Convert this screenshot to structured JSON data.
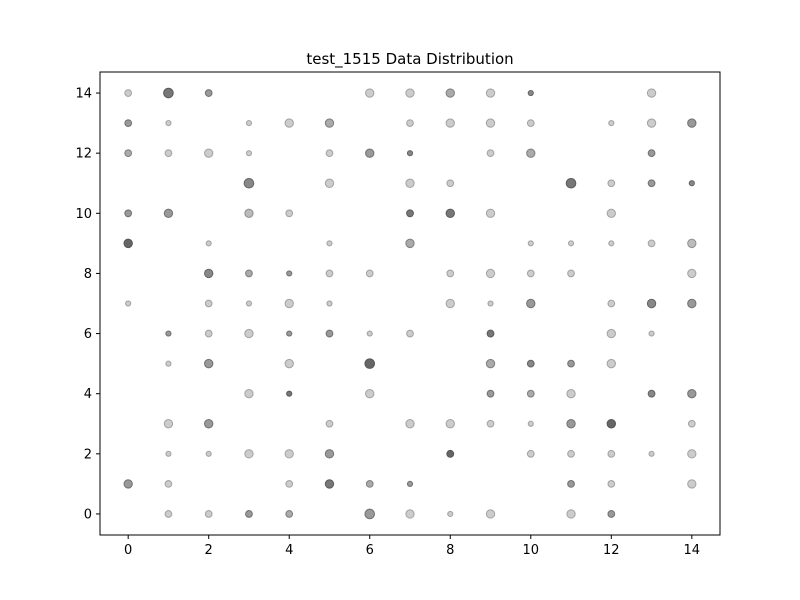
{
  "chart_data": {
    "type": "scatter",
    "title": "test_1515 Data Distribution",
    "xlabel": "",
    "ylabel": "",
    "xlim": [
      -0.7,
      14.7
    ],
    "ylim": [
      -0.7,
      14.7
    ],
    "xticks": [
      0,
      2,
      4,
      6,
      8,
      10,
      12,
      14
    ],
    "yticks": [
      0,
      2,
      4,
      6,
      8,
      10,
      12,
      14
    ],
    "grid": false,
    "marker_color": "#555555",
    "points": [
      {
        "x": 0,
        "y": 14,
        "size": "small",
        "alpha": 0.3
      },
      {
        "x": 1,
        "y": 14,
        "size": "large",
        "alpha": 0.8
      },
      {
        "x": 2,
        "y": 14,
        "size": "small",
        "alpha": 0.6
      },
      {
        "x": 6,
        "y": 14,
        "size": "medium",
        "alpha": 0.3
      },
      {
        "x": 7,
        "y": 14,
        "size": "medium",
        "alpha": 0.3
      },
      {
        "x": 8,
        "y": 14,
        "size": "medium",
        "alpha": 0.5
      },
      {
        "x": 9,
        "y": 14,
        "size": "medium",
        "alpha": 0.3
      },
      {
        "x": 10,
        "y": 14,
        "size": "tiny",
        "alpha": 0.7
      },
      {
        "x": 13,
        "y": 14,
        "size": "medium",
        "alpha": 0.3
      },
      {
        "x": 0,
        "y": 13,
        "size": "small",
        "alpha": 0.6
      },
      {
        "x": 1,
        "y": 13,
        "size": "tiny",
        "alpha": 0.3
      },
      {
        "x": 3,
        "y": 13,
        "size": "tiny",
        "alpha": 0.3
      },
      {
        "x": 4,
        "y": 13,
        "size": "medium",
        "alpha": 0.3
      },
      {
        "x": 5,
        "y": 13,
        "size": "medium",
        "alpha": 0.5
      },
      {
        "x": 7,
        "y": 13,
        "size": "small",
        "alpha": 0.3
      },
      {
        "x": 8,
        "y": 13,
        "size": "medium",
        "alpha": 0.3
      },
      {
        "x": 9,
        "y": 13,
        "size": "medium",
        "alpha": 0.3
      },
      {
        "x": 10,
        "y": 13,
        "size": "small",
        "alpha": 0.3
      },
      {
        "x": 12,
        "y": 13,
        "size": "tiny",
        "alpha": 0.3
      },
      {
        "x": 13,
        "y": 13,
        "size": "medium",
        "alpha": 0.3
      },
      {
        "x": 14,
        "y": 13,
        "size": "medium",
        "alpha": 0.6
      },
      {
        "x": 0,
        "y": 12,
        "size": "small",
        "alpha": 0.5
      },
      {
        "x": 1,
        "y": 12,
        "size": "small",
        "alpha": 0.3
      },
      {
        "x": 2,
        "y": 12,
        "size": "medium",
        "alpha": 0.3
      },
      {
        "x": 3,
        "y": 12,
        "size": "tiny",
        "alpha": 0.3
      },
      {
        "x": 5,
        "y": 12,
        "size": "small",
        "alpha": 0.3
      },
      {
        "x": 6,
        "y": 12,
        "size": "medium",
        "alpha": 0.6
      },
      {
        "x": 7,
        "y": 12,
        "size": "tiny",
        "alpha": 0.7
      },
      {
        "x": 9,
        "y": 12,
        "size": "small",
        "alpha": 0.3
      },
      {
        "x": 10,
        "y": 12,
        "size": "medium",
        "alpha": 0.5
      },
      {
        "x": 13,
        "y": 12,
        "size": "small",
        "alpha": 0.6
      },
      {
        "x": 3,
        "y": 11,
        "size": "large",
        "alpha": 0.7
      },
      {
        "x": 5,
        "y": 11,
        "size": "medium",
        "alpha": 0.3
      },
      {
        "x": 7,
        "y": 11,
        "size": "medium",
        "alpha": 0.3
      },
      {
        "x": 8,
        "y": 11,
        "size": "small",
        "alpha": 0.3
      },
      {
        "x": 11,
        "y": 11,
        "size": "large",
        "alpha": 0.8
      },
      {
        "x": 12,
        "y": 11,
        "size": "small",
        "alpha": 0.3
      },
      {
        "x": 13,
        "y": 11,
        "size": "small",
        "alpha": 0.6
      },
      {
        "x": 14,
        "y": 11,
        "size": "tiny",
        "alpha": 0.7
      },
      {
        "x": 0,
        "y": 10,
        "size": "small",
        "alpha": 0.6
      },
      {
        "x": 1,
        "y": 10,
        "size": "medium",
        "alpha": 0.6
      },
      {
        "x": 3,
        "y": 10,
        "size": "medium",
        "alpha": 0.4
      },
      {
        "x": 4,
        "y": 10,
        "size": "small",
        "alpha": 0.3
      },
      {
        "x": 7,
        "y": 10,
        "size": "small",
        "alpha": 0.8
      },
      {
        "x": 8,
        "y": 10,
        "size": "medium",
        "alpha": 0.8
      },
      {
        "x": 9,
        "y": 10,
        "size": "medium",
        "alpha": 0.3
      },
      {
        "x": 12,
        "y": 10,
        "size": "medium",
        "alpha": 0.3
      },
      {
        "x": 0,
        "y": 9,
        "size": "medium",
        "alpha": 0.9
      },
      {
        "x": 2,
        "y": 9,
        "size": "tiny",
        "alpha": 0.3
      },
      {
        "x": 5,
        "y": 9,
        "size": "tiny",
        "alpha": 0.3
      },
      {
        "x": 7,
        "y": 9,
        "size": "medium",
        "alpha": 0.5
      },
      {
        "x": 10,
        "y": 9,
        "size": "tiny",
        "alpha": 0.3
      },
      {
        "x": 11,
        "y": 9,
        "size": "tiny",
        "alpha": 0.3
      },
      {
        "x": 12,
        "y": 9,
        "size": "tiny",
        "alpha": 0.3
      },
      {
        "x": 13,
        "y": 9,
        "size": "small",
        "alpha": 0.3
      },
      {
        "x": 14,
        "y": 9,
        "size": "medium",
        "alpha": 0.4
      },
      {
        "x": 2,
        "y": 8,
        "size": "medium",
        "alpha": 0.7
      },
      {
        "x": 3,
        "y": 8,
        "size": "small",
        "alpha": 0.5
      },
      {
        "x": 4,
        "y": 8,
        "size": "tiny",
        "alpha": 0.6
      },
      {
        "x": 5,
        "y": 8,
        "size": "small",
        "alpha": 0.3
      },
      {
        "x": 6,
        "y": 8,
        "size": "small",
        "alpha": 0.3
      },
      {
        "x": 8,
        "y": 8,
        "size": "small",
        "alpha": 0.3
      },
      {
        "x": 9,
        "y": 8,
        "size": "medium",
        "alpha": 0.3
      },
      {
        "x": 10,
        "y": 8,
        "size": "small",
        "alpha": 0.3
      },
      {
        "x": 11,
        "y": 8,
        "size": "small",
        "alpha": 0.3
      },
      {
        "x": 14,
        "y": 8,
        "size": "medium",
        "alpha": 0.3
      },
      {
        "x": 0,
        "y": 7,
        "size": "tiny",
        "alpha": 0.3
      },
      {
        "x": 2,
        "y": 7,
        "size": "small",
        "alpha": 0.3
      },
      {
        "x": 3,
        "y": 7,
        "size": "tiny",
        "alpha": 0.3
      },
      {
        "x": 4,
        "y": 7,
        "size": "medium",
        "alpha": 0.3
      },
      {
        "x": 5,
        "y": 7,
        "size": "tiny",
        "alpha": 0.3
      },
      {
        "x": 8,
        "y": 7,
        "size": "medium",
        "alpha": 0.3
      },
      {
        "x": 9,
        "y": 7,
        "size": "tiny",
        "alpha": 0.3
      },
      {
        "x": 10,
        "y": 7,
        "size": "medium",
        "alpha": 0.6
      },
      {
        "x": 12,
        "y": 7,
        "size": "small",
        "alpha": 0.3
      },
      {
        "x": 13,
        "y": 7,
        "size": "medium",
        "alpha": 0.7
      },
      {
        "x": 14,
        "y": 7,
        "size": "medium",
        "alpha": 0.6
      },
      {
        "x": 1,
        "y": 6,
        "size": "tiny",
        "alpha": 0.6
      },
      {
        "x": 2,
        "y": 6,
        "size": "small",
        "alpha": 0.3
      },
      {
        "x": 3,
        "y": 6,
        "size": "medium",
        "alpha": 0.3
      },
      {
        "x": 4,
        "y": 6,
        "size": "tiny",
        "alpha": 0.6
      },
      {
        "x": 5,
        "y": 6,
        "size": "small",
        "alpha": 0.6
      },
      {
        "x": 6,
        "y": 6,
        "size": "tiny",
        "alpha": 0.3
      },
      {
        "x": 7,
        "y": 6,
        "size": "small",
        "alpha": 0.3
      },
      {
        "x": 9,
        "y": 6,
        "size": "small",
        "alpha": 0.8
      },
      {
        "x": 12,
        "y": 6,
        "size": "medium",
        "alpha": 0.3
      },
      {
        "x": 13,
        "y": 6,
        "size": "tiny",
        "alpha": 0.3
      },
      {
        "x": 1,
        "y": 5,
        "size": "tiny",
        "alpha": 0.3
      },
      {
        "x": 2,
        "y": 5,
        "size": "medium",
        "alpha": 0.6
      },
      {
        "x": 4,
        "y": 5,
        "size": "medium",
        "alpha": 0.3
      },
      {
        "x": 6,
        "y": 5,
        "size": "large",
        "alpha": 0.9
      },
      {
        "x": 9,
        "y": 5,
        "size": "medium",
        "alpha": 0.5
      },
      {
        "x": 10,
        "y": 5,
        "size": "small",
        "alpha": 0.7
      },
      {
        "x": 11,
        "y": 5,
        "size": "small",
        "alpha": 0.6
      },
      {
        "x": 12,
        "y": 5,
        "size": "medium",
        "alpha": 0.3
      },
      {
        "x": 3,
        "y": 4,
        "size": "medium",
        "alpha": 0.3
      },
      {
        "x": 4,
        "y": 4,
        "size": "tiny",
        "alpha": 0.8
      },
      {
        "x": 6,
        "y": 4,
        "size": "medium",
        "alpha": 0.3
      },
      {
        "x": 9,
        "y": 4,
        "size": "small",
        "alpha": 0.6
      },
      {
        "x": 10,
        "y": 4,
        "size": "small",
        "alpha": 0.5
      },
      {
        "x": 11,
        "y": 4,
        "size": "medium",
        "alpha": 0.3
      },
      {
        "x": 13,
        "y": 4,
        "size": "small",
        "alpha": 0.7
      },
      {
        "x": 14,
        "y": 4,
        "size": "medium",
        "alpha": 0.6
      },
      {
        "x": 1,
        "y": 3,
        "size": "medium",
        "alpha": 0.3
      },
      {
        "x": 2,
        "y": 3,
        "size": "medium",
        "alpha": 0.6
      },
      {
        "x": 5,
        "y": 3,
        "size": "small",
        "alpha": 0.3
      },
      {
        "x": 7,
        "y": 3,
        "size": "medium",
        "alpha": 0.3
      },
      {
        "x": 8,
        "y": 3,
        "size": "medium",
        "alpha": 0.3
      },
      {
        "x": 9,
        "y": 3,
        "size": "small",
        "alpha": 0.3
      },
      {
        "x": 10,
        "y": 3,
        "size": "tiny",
        "alpha": 0.3
      },
      {
        "x": 11,
        "y": 3,
        "size": "medium",
        "alpha": 0.6
      },
      {
        "x": 12,
        "y": 3,
        "size": "medium",
        "alpha": 0.9
      },
      {
        "x": 14,
        "y": 3,
        "size": "small",
        "alpha": 0.3
      },
      {
        "x": 1,
        "y": 2,
        "size": "tiny",
        "alpha": 0.3
      },
      {
        "x": 2,
        "y": 2,
        "size": "tiny",
        "alpha": 0.3
      },
      {
        "x": 3,
        "y": 2,
        "size": "medium",
        "alpha": 0.3
      },
      {
        "x": 4,
        "y": 2,
        "size": "medium",
        "alpha": 0.3
      },
      {
        "x": 5,
        "y": 2,
        "size": "medium",
        "alpha": 0.6
      },
      {
        "x": 8,
        "y": 2,
        "size": "small",
        "alpha": 0.9
      },
      {
        "x": 10,
        "y": 2,
        "size": "small",
        "alpha": 0.3
      },
      {
        "x": 11,
        "y": 2,
        "size": "small",
        "alpha": 0.3
      },
      {
        "x": 12,
        "y": 2,
        "size": "small",
        "alpha": 0.3
      },
      {
        "x": 13,
        "y": 2,
        "size": "tiny",
        "alpha": 0.3
      },
      {
        "x": 14,
        "y": 2,
        "size": "medium",
        "alpha": 0.3
      },
      {
        "x": 0,
        "y": 1,
        "size": "medium",
        "alpha": 0.6
      },
      {
        "x": 1,
        "y": 1,
        "size": "small",
        "alpha": 0.3
      },
      {
        "x": 4,
        "y": 1,
        "size": "small",
        "alpha": 0.3
      },
      {
        "x": 5,
        "y": 1,
        "size": "medium",
        "alpha": 0.8
      },
      {
        "x": 6,
        "y": 1,
        "size": "small",
        "alpha": 0.5
      },
      {
        "x": 7,
        "y": 1,
        "size": "tiny",
        "alpha": 0.6
      },
      {
        "x": 11,
        "y": 1,
        "size": "small",
        "alpha": 0.6
      },
      {
        "x": 12,
        "y": 1,
        "size": "small",
        "alpha": 0.3
      },
      {
        "x": 14,
        "y": 1,
        "size": "medium",
        "alpha": 0.3
      },
      {
        "x": 1,
        "y": 0,
        "size": "small",
        "alpha": 0.3
      },
      {
        "x": 2,
        "y": 0,
        "size": "small",
        "alpha": 0.3
      },
      {
        "x": 3,
        "y": 0,
        "size": "small",
        "alpha": 0.6
      },
      {
        "x": 4,
        "y": 0,
        "size": "small",
        "alpha": 0.5
      },
      {
        "x": 6,
        "y": 0,
        "size": "large",
        "alpha": 0.6
      },
      {
        "x": 7,
        "y": 0,
        "size": "medium",
        "alpha": 0.3
      },
      {
        "x": 8,
        "y": 0,
        "size": "tiny",
        "alpha": 0.3
      },
      {
        "x": 9,
        "y": 0,
        "size": "medium",
        "alpha": 0.3
      },
      {
        "x": 11,
        "y": 0,
        "size": "medium",
        "alpha": 0.3
      },
      {
        "x": 12,
        "y": 0,
        "size": "small",
        "alpha": 0.6
      }
    ]
  }
}
